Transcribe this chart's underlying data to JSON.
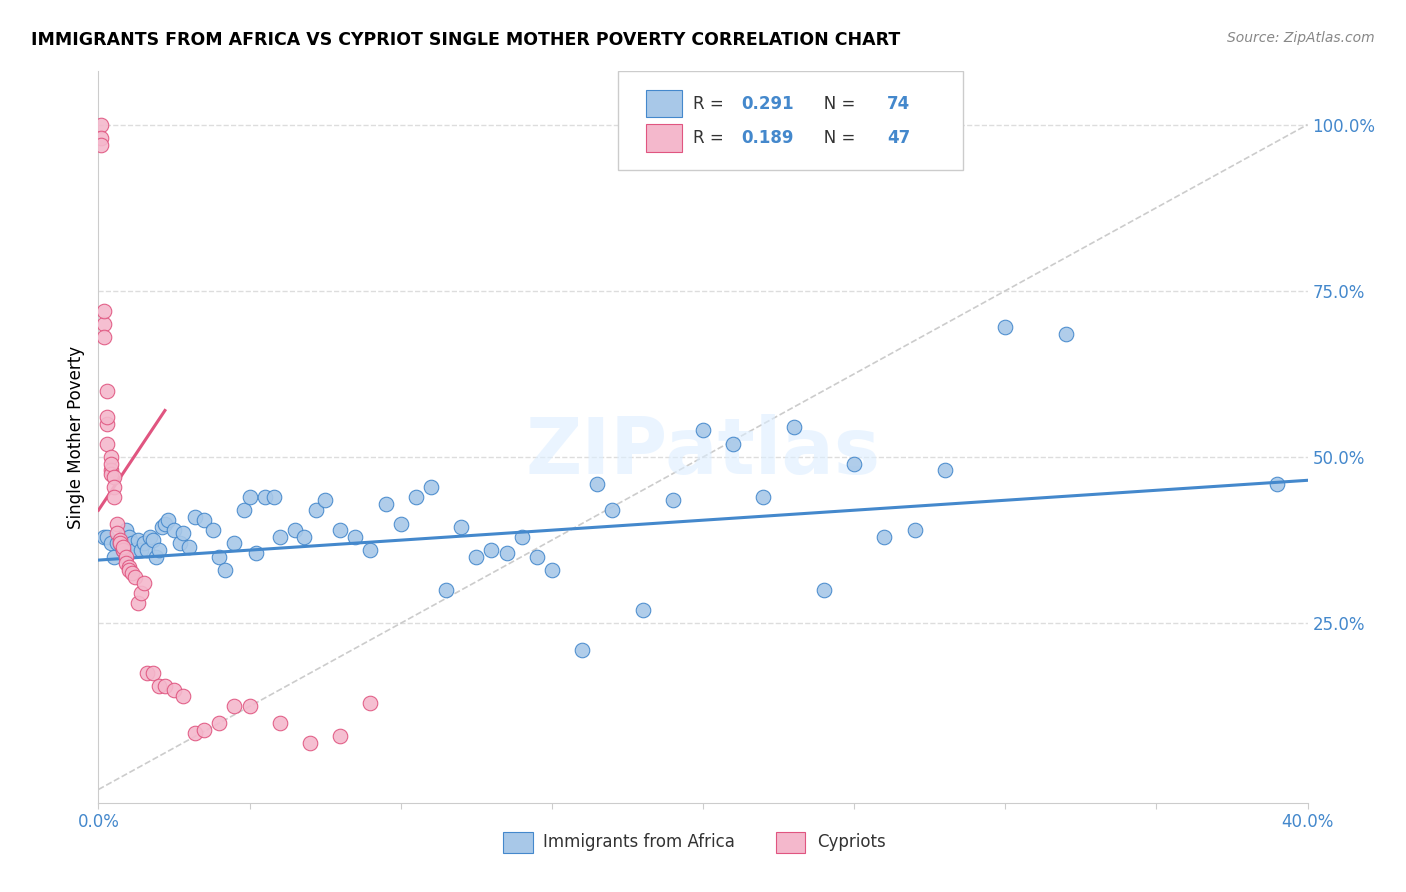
{
  "title": "IMMIGRANTS FROM AFRICA VS CYPRIOT SINGLE MOTHER POVERTY CORRELATION CHART",
  "source": "Source: ZipAtlas.com",
  "ylabel": "Single Mother Poverty",
  "xlim": [
    0.0,
    0.4
  ],
  "ylim": [
    -0.02,
    1.08
  ],
  "blue_color": "#a8c8e8",
  "pink_color": "#f4b8cc",
  "blue_line_color": "#4488cc",
  "pink_line_color": "#e05580",
  "watermark": "ZIPatlas",
  "blue_scatter_x": [
    0.002,
    0.003,
    0.004,
    0.005,
    0.006,
    0.007,
    0.008,
    0.009,
    0.01,
    0.011,
    0.012,
    0.013,
    0.014,
    0.015,
    0.016,
    0.017,
    0.018,
    0.019,
    0.02,
    0.021,
    0.022,
    0.023,
    0.025,
    0.027,
    0.028,
    0.03,
    0.032,
    0.035,
    0.038,
    0.04,
    0.042,
    0.045,
    0.048,
    0.05,
    0.052,
    0.055,
    0.058,
    0.06,
    0.065,
    0.068,
    0.072,
    0.075,
    0.08,
    0.085,
    0.09,
    0.095,
    0.1,
    0.105,
    0.11,
    0.115,
    0.12,
    0.125,
    0.13,
    0.135,
    0.14,
    0.145,
    0.15,
    0.16,
    0.165,
    0.17,
    0.18,
    0.19,
    0.2,
    0.21,
    0.22,
    0.23,
    0.24,
    0.25,
    0.26,
    0.27,
    0.28,
    0.3,
    0.32,
    0.39
  ],
  "blue_scatter_y": [
    0.38,
    0.38,
    0.37,
    0.35,
    0.37,
    0.37,
    0.36,
    0.39,
    0.38,
    0.37,
    0.36,
    0.375,
    0.36,
    0.37,
    0.36,
    0.38,
    0.375,
    0.35,
    0.36,
    0.395,
    0.4,
    0.405,
    0.39,
    0.37,
    0.385,
    0.365,
    0.41,
    0.405,
    0.39,
    0.35,
    0.33,
    0.37,
    0.42,
    0.44,
    0.355,
    0.44,
    0.44,
    0.38,
    0.39,
    0.38,
    0.42,
    0.435,
    0.39,
    0.38,
    0.36,
    0.43,
    0.4,
    0.44,
    0.455,
    0.3,
    0.395,
    0.35,
    0.36,
    0.355,
    0.38,
    0.35,
    0.33,
    0.21,
    0.46,
    0.42,
    0.27,
    0.435,
    0.54,
    0.52,
    0.44,
    0.545,
    0.3,
    0.49,
    0.38,
    0.39,
    0.48,
    0.695,
    0.685,
    0.46
  ],
  "pink_scatter_x": [
    0.001,
    0.001,
    0.001,
    0.002,
    0.002,
    0.002,
    0.003,
    0.003,
    0.003,
    0.003,
    0.004,
    0.004,
    0.004,
    0.004,
    0.005,
    0.005,
    0.005,
    0.006,
    0.006,
    0.007,
    0.007,
    0.008,
    0.008,
    0.009,
    0.009,
    0.01,
    0.01,
    0.011,
    0.012,
    0.013,
    0.014,
    0.015,
    0.016,
    0.018,
    0.02,
    0.022,
    0.025,
    0.028,
    0.032,
    0.035,
    0.04,
    0.045,
    0.05,
    0.06,
    0.07,
    0.08,
    0.09
  ],
  "pink_scatter_y": [
    1.0,
    0.98,
    0.97,
    0.7,
    0.68,
    0.72,
    0.6,
    0.55,
    0.52,
    0.56,
    0.5,
    0.48,
    0.475,
    0.49,
    0.47,
    0.455,
    0.44,
    0.4,
    0.385,
    0.375,
    0.37,
    0.36,
    0.365,
    0.35,
    0.34,
    0.335,
    0.33,
    0.325,
    0.32,
    0.28,
    0.295,
    0.31,
    0.175,
    0.175,
    0.155,
    0.155,
    0.15,
    0.14,
    0.085,
    0.09,
    0.1,
    0.125,
    0.125,
    0.1,
    0.07,
    0.08,
    0.13
  ],
  "blue_trend_x": [
    0.0,
    0.4
  ],
  "blue_trend_y": [
    0.345,
    0.465
  ],
  "pink_trend_x": [
    0.0,
    0.022
  ],
  "pink_trend_y": [
    0.42,
    0.57
  ],
  "gray_trend_x": [
    0.0,
    0.4
  ],
  "gray_trend_y": [
    0.0,
    1.0
  ]
}
